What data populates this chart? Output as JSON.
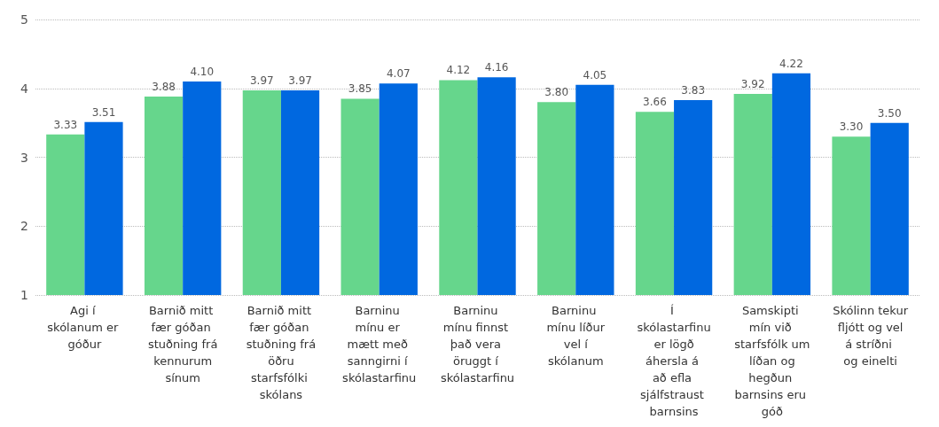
{
  "chart_data": {
    "type": "bar",
    "categories": [
      "Agi í skólanum er góður",
      "Barnið mitt fær góðan stuðning frá kennurum sínum",
      "Barnið mitt fær góðan stuðning frá öðru starfsfólki skólans",
      "Barninu mínu er mætt með sanngirni í skólastarfinu",
      "Barninu mínu finnst það vera öruggt í skólastarfinu",
      "Barninu mínu líður vel í skólanum",
      "Í skólastarfinu er lögð áhersla á að efla sjálfstraust barnsins",
      "Samskipti mín við starfsfólk um líðan og hegðun barnsins eru góð",
      "Skólinn tekur fljótt og vel á stríðni og einelti"
    ],
    "series": [
      {
        "color": "#66d68c",
        "values": [
          3.33,
          3.88,
          3.97,
          3.85,
          4.12,
          3.8,
          3.66,
          3.92,
          3.3
        ],
        "value_labels": [
          "3.33",
          "3.88",
          "3.97",
          "3.85",
          "4.12",
          "3.80",
          "3.66",
          "3.92",
          "3.30"
        ]
      },
      {
        "color": "#0068e0",
        "values": [
          3.51,
          4.1,
          3.97,
          4.07,
          4.16,
          4.05,
          3.83,
          4.22,
          3.5
        ],
        "value_labels": [
          "3.51",
          "4.10",
          "3.97",
          "4.07",
          "4.16",
          "4.05",
          "3.83",
          "4.22",
          "3.50"
        ]
      }
    ],
    "ylim": [
      1,
      5
    ],
    "yticks": [
      1,
      2,
      3,
      4,
      5
    ],
    "grid": "y"
  }
}
